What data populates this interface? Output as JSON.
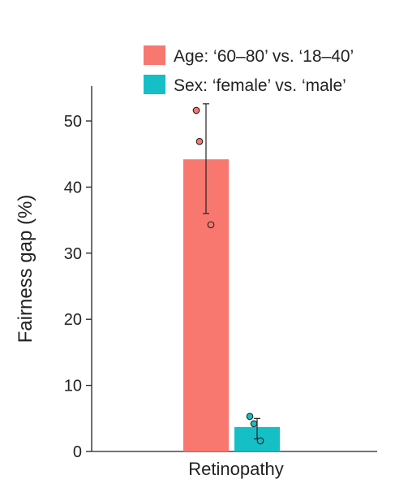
{
  "chart_data": {
    "type": "bar",
    "categories": [
      "Retinopathy"
    ],
    "xlabel": "Retinopathy",
    "ylabel": "Fairness gap (%)",
    "ylim": [
      0,
      55
    ],
    "yticks": [
      0,
      10,
      20,
      30,
      40,
      50
    ],
    "grid": false,
    "legend_position": "top-right",
    "series": [
      {
        "name": "Age: ‘60–80’ vs. ‘18–40’",
        "color": "#F8776F",
        "values": [
          44.2
        ],
        "error": {
          "low": 36.0,
          "high": 52.6
        },
        "points": [
          51.6,
          46.9,
          34.3
        ]
      },
      {
        "name": "Sex: ‘female’ vs. ‘male’",
        "color": "#14BFC6",
        "values": [
          3.7
        ],
        "error": {
          "low": 1.9,
          "high": 5.0
        },
        "points": [
          5.3,
          4.2,
          1.6
        ]
      }
    ]
  }
}
